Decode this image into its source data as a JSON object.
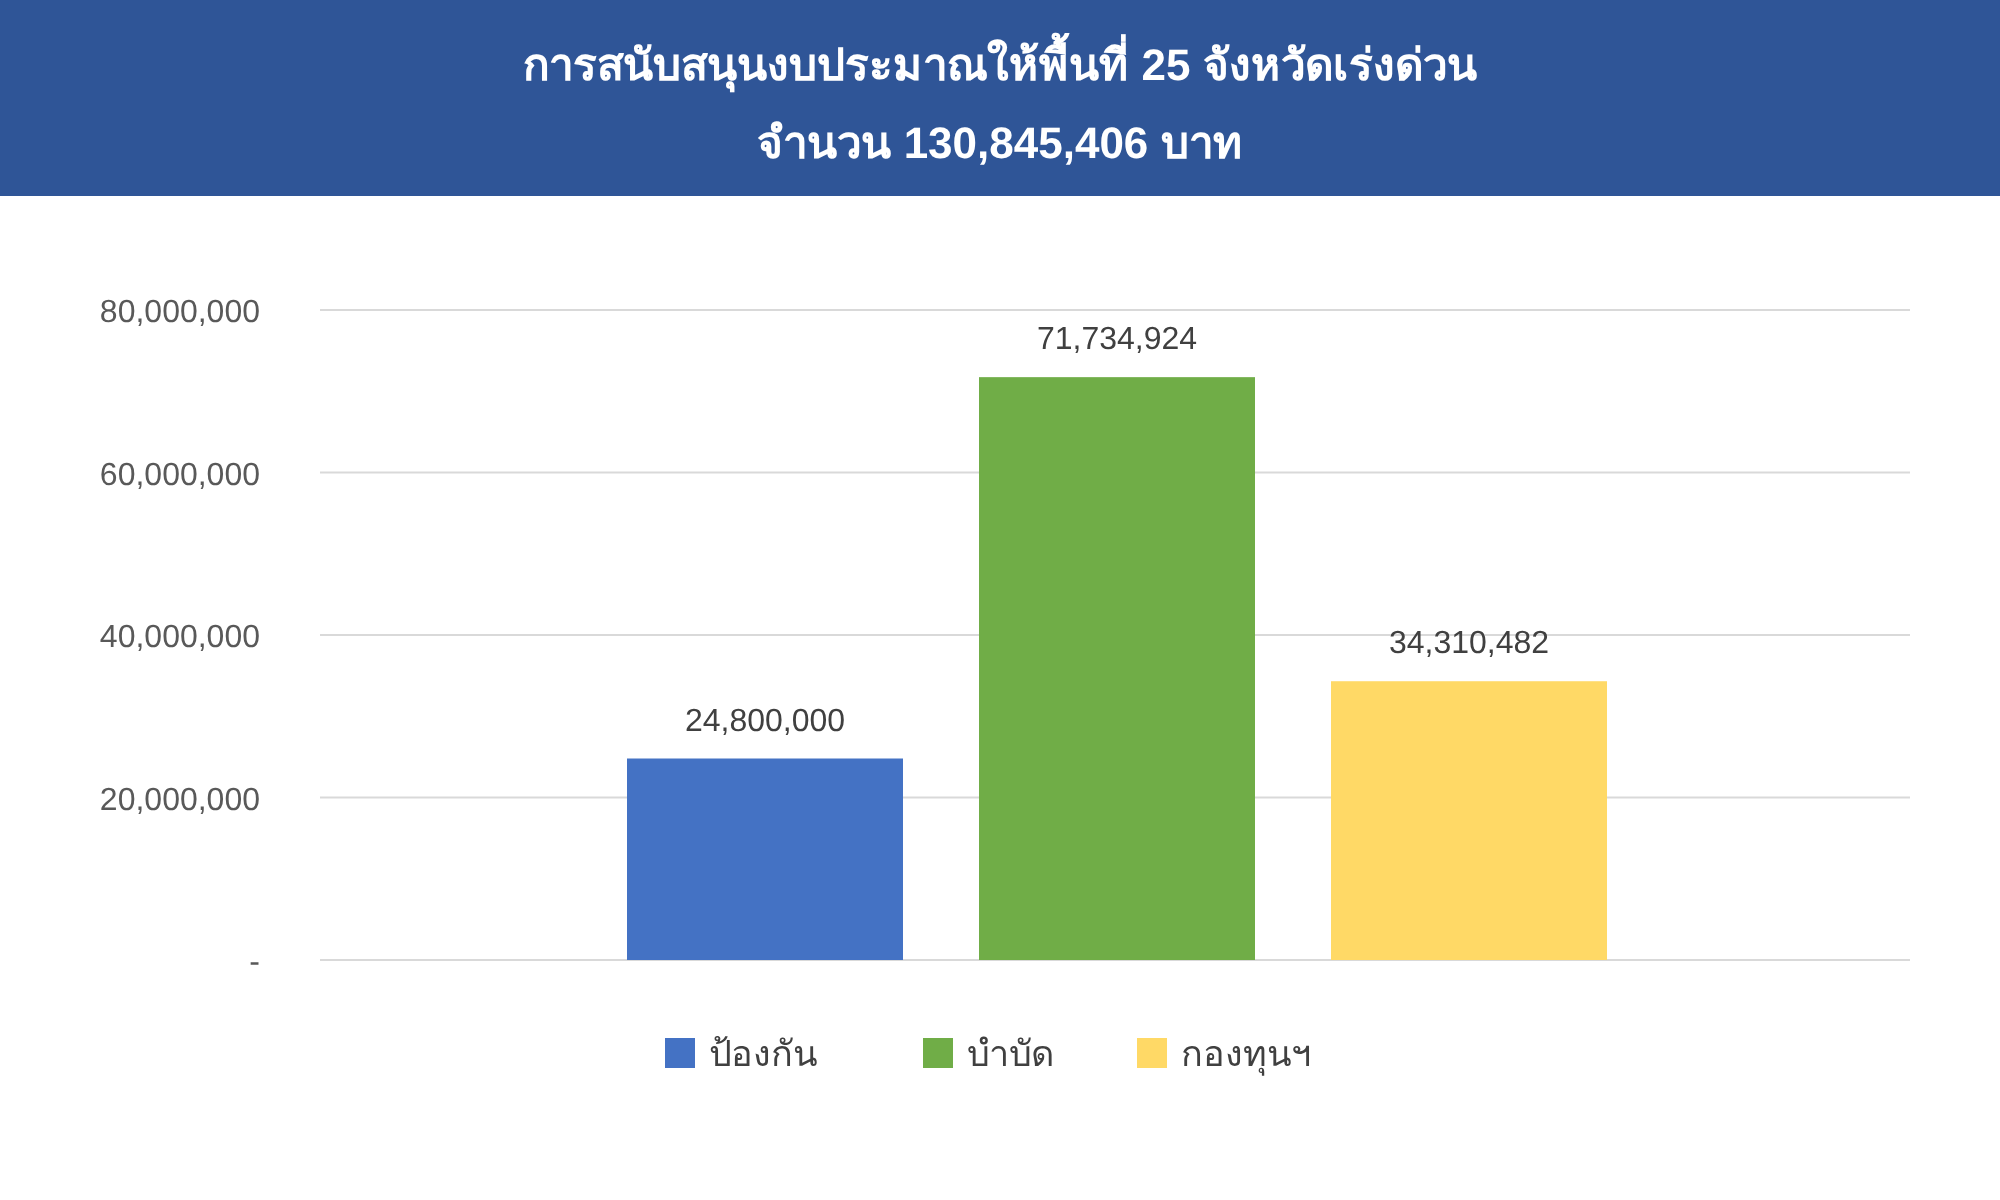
{
  "chart_data": {
    "type": "bar",
    "title": "การสนับสนุนงบประมาณให้พื้นที่ 25 จังหวัดเร่งด่วน",
    "subtitle": "จำนวน 130,845,406 บาท",
    "categories": [
      null
    ],
    "series": [
      {
        "name": "ป้องกัน",
        "color": "#4472c4",
        "values": [
          24800000
        ],
        "value_labels": [
          "24,800,000"
        ]
      },
      {
        "name": "บำบัด",
        "color": "#70ad47",
        "values": [
          71734924
        ],
        "value_labels": [
          "71,734,924"
        ]
      },
      {
        "name": "กองทุนฯ",
        "color": "#ffd966",
        "values": [
          34310482
        ],
        "value_labels": [
          "34,310,482"
        ]
      }
    ],
    "ylim": [
      0,
      80000000
    ],
    "yticks": [
      {
        "value": 0,
        "label": "-"
      },
      {
        "value": 20000000,
        "label": "20,000,000"
      },
      {
        "value": 40000000,
        "label": "40,000,000"
      },
      {
        "value": 60000000,
        "label": "60,000,000"
      },
      {
        "value": 80000000,
        "label": "80,000,000"
      }
    ],
    "grid": "y",
    "legend": "bottom"
  }
}
